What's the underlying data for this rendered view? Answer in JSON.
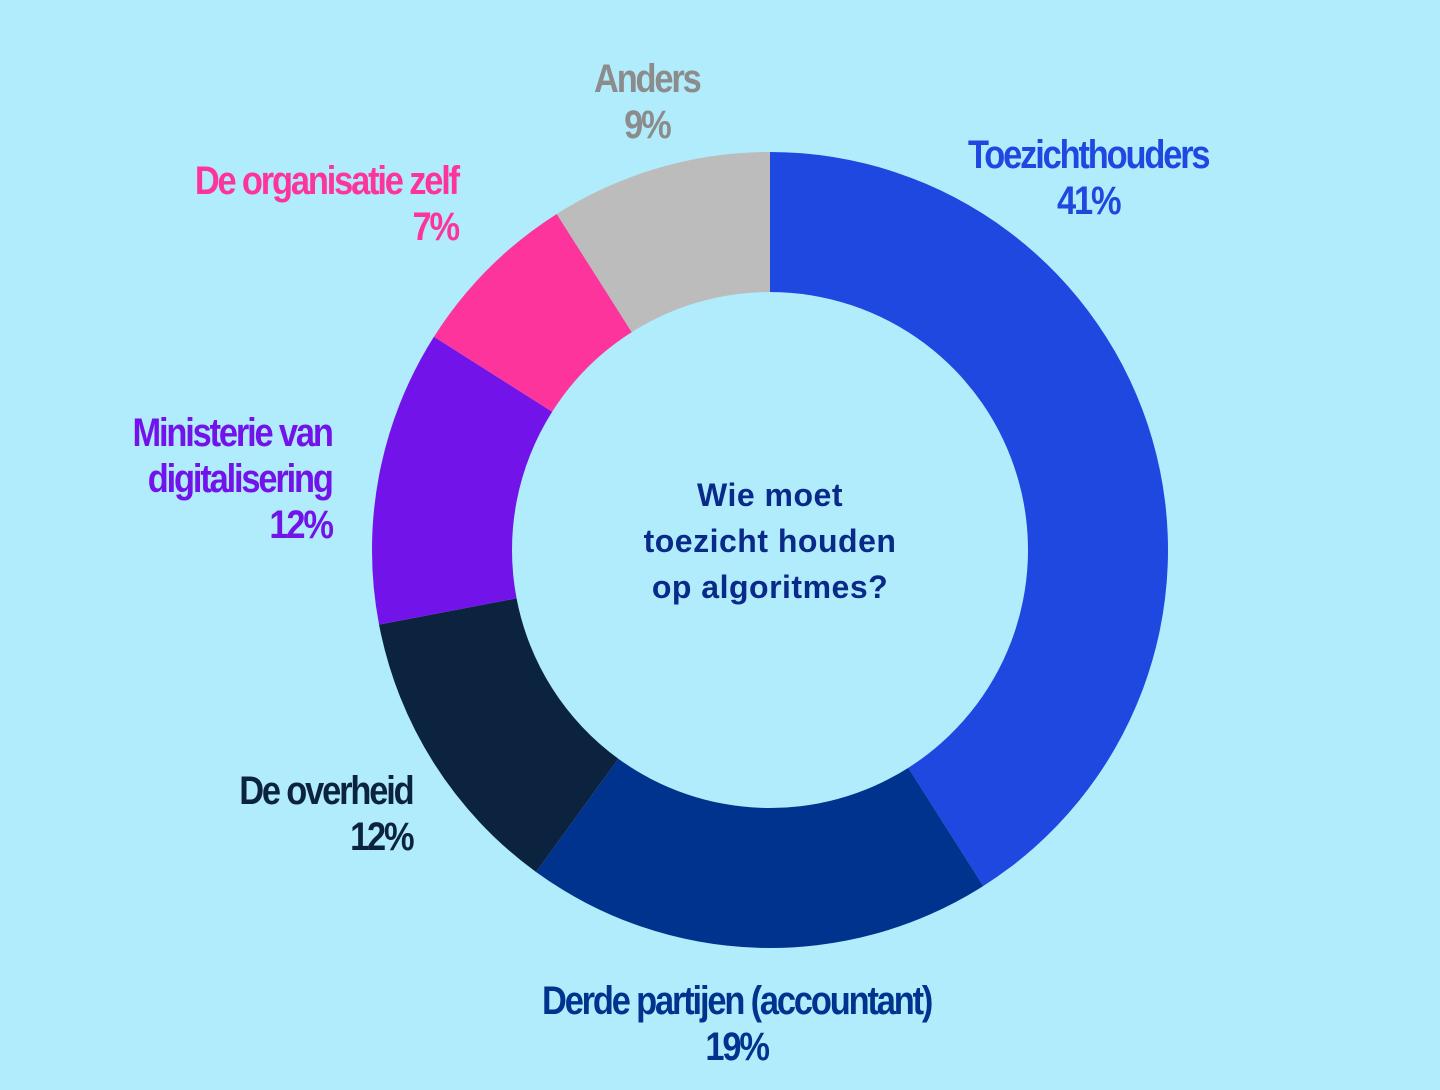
{
  "chart_data": {
    "type": "pie",
    "variant": "donut",
    "start": "top",
    "direction": "clockwise",
    "center_question": [
      "Wie moet",
      "toezicht houden",
      "op algoritmes?"
    ],
    "slices": [
      {
        "key": "toezichthouders",
        "name": [
          "Toezichthouders"
        ],
        "value": 41,
        "label": "41%",
        "color": "#1e48e0",
        "label_color": "#1e48e0"
      },
      {
        "key": "derde",
        "name": [
          "Derde partijen (accountant)"
        ],
        "value": 19,
        "label": "19%",
        "color": "#00338d",
        "label_color": "#00338d"
      },
      {
        "key": "overheid",
        "name": [
          "De overheid"
        ],
        "value": 12,
        "label": "12%",
        "color": "#0c2340",
        "label_color": "#0c2340"
      },
      {
        "key": "ministerie",
        "name": [
          "Ministerie van",
          "digitalisering"
        ],
        "value": 12,
        "label": "12%",
        "color": "#7213ea",
        "label_color": "#7213ea"
      },
      {
        "key": "organisatie",
        "name": [
          "De organisatie zelf"
        ],
        "value": 7,
        "label": "7%",
        "color": "#fd349c",
        "label_color": "#fd349c"
      },
      {
        "key": "anders",
        "name": [
          "Anders"
        ],
        "value": 9,
        "label": "9%",
        "color": "#bcbcbc",
        "label_color": "#8c8c8c"
      }
    ]
  }
}
